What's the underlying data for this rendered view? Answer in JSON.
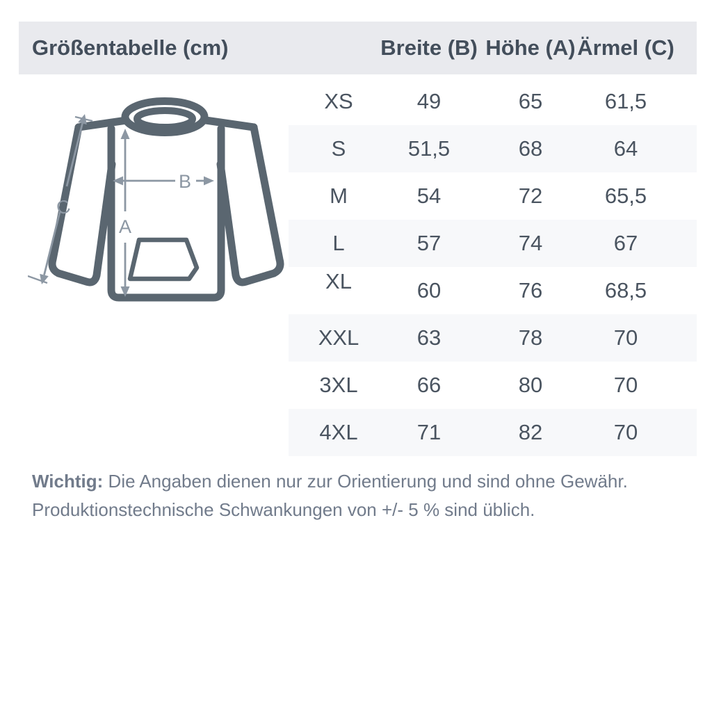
{
  "header": {
    "title": "Größentabelle (cm)"
  },
  "chart_data": {
    "type": "table",
    "title": "Größentabelle (cm)",
    "unit": "cm",
    "columns": [
      "Breite (B)",
      "Höhe (A)",
      "Ärmel (C)"
    ],
    "rows": [
      [
        "XS",
        "49",
        "65",
        "61,5"
      ],
      [
        "S",
        "51,5",
        "68",
        "64"
      ],
      [
        "M",
        "54",
        "72",
        "65,5"
      ],
      [
        "L",
        "57",
        "74",
        "67"
      ],
      [
        "XL",
        "60",
        "76",
        "68,5"
      ],
      [
        "XXL",
        "63",
        "78",
        "70"
      ],
      [
        "3XL",
        "66",
        "80",
        "70"
      ],
      [
        "4XL",
        "71",
        "82",
        "70"
      ]
    ]
  },
  "diagram": {
    "label_a": "A",
    "label_b": "B",
    "label_c": "C"
  },
  "note": {
    "bold": "Wichtig:",
    "line1": " Die Angaben dienen nur zur Orientierung und sind ohne Gewähr.",
    "line2": "Produktionstechnische Schwankungen von +/- 5 % sind üblich."
  },
  "colors": {
    "header_bg": "#E9EAEE",
    "stripe_bg": "#F7F8FA",
    "heading_text": "#434E5B",
    "table_text": "#4A5460",
    "note_text": "#717B8B",
    "outline": "#5A6670",
    "arrow": "#8C97A3"
  }
}
